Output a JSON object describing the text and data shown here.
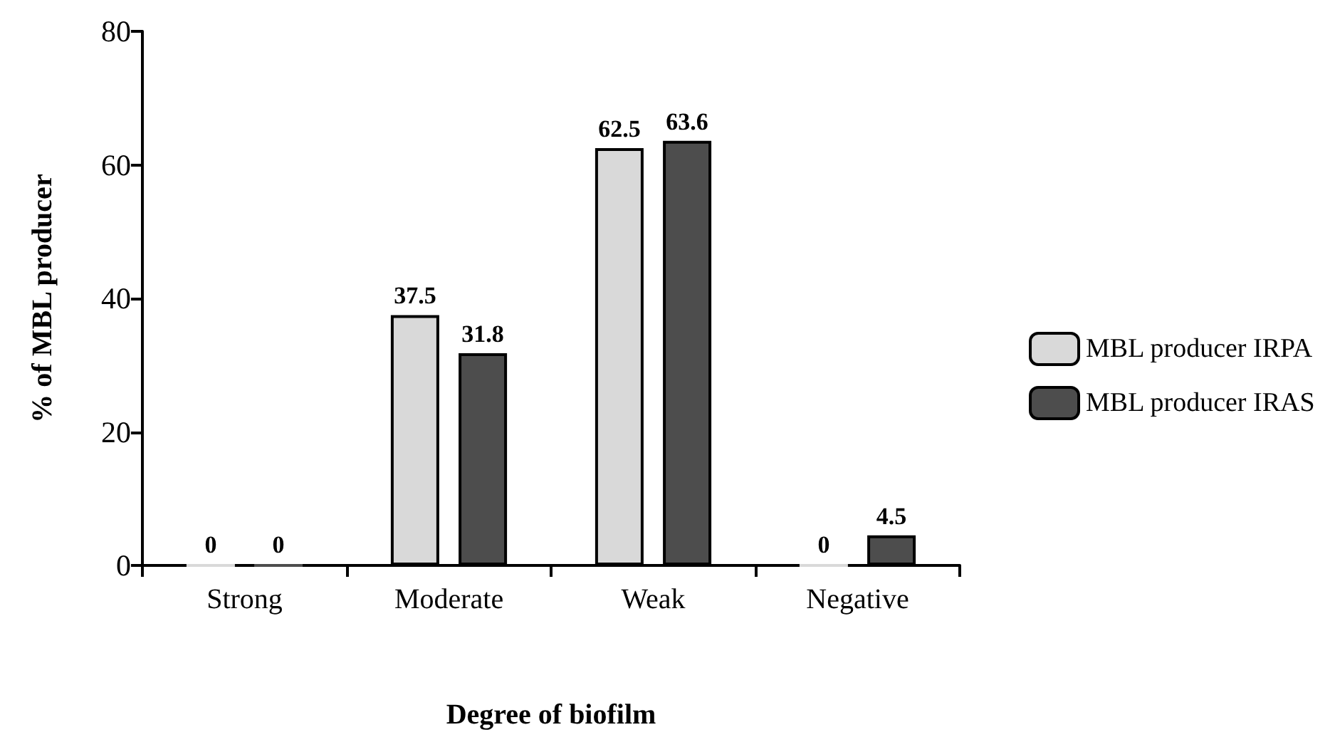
{
  "chart_data": {
    "type": "bar",
    "xlabel": "Degree of biofilm",
    "ylabel": "% of MBL producer",
    "categories": [
      "Strong",
      "Moderate",
      "Weak",
      "Negative"
    ],
    "series": [
      {
        "name": "MBL producer IRPA",
        "color": "#d9d9d9",
        "values": [
          0,
          37.5,
          62.5,
          0
        ]
      },
      {
        "name": "MBL producer IRAS",
        "color": "#4d4d4d",
        "values": [
          0,
          31.8,
          63.6,
          4.5
        ]
      }
    ],
    "ylim": [
      0,
      80
    ],
    "yticks": [
      0,
      20,
      40,
      60,
      80
    ],
    "grid": false,
    "legend": "right",
    "data_labels": true
  }
}
